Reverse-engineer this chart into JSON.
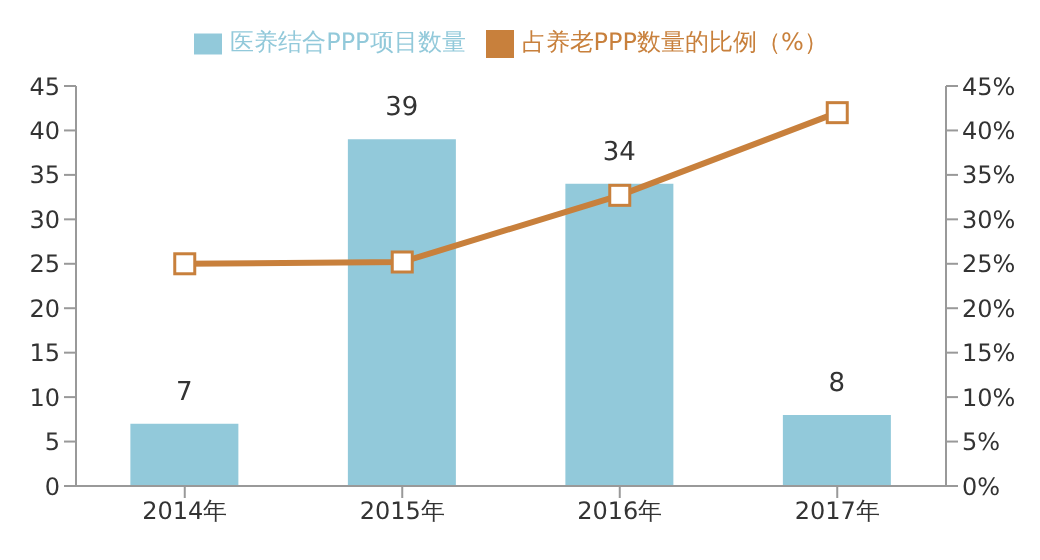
{
  "chart_data": {
    "type": "bar",
    "categories": [
      "2014年",
      "2015年",
      "2016年",
      "2017年"
    ],
    "series": [
      {
        "name": "医养结合PPP项目数量",
        "color": "#92c9da",
        "values": [
          7,
          39,
          34,
          8
        ],
        "value_labels": [
          "7",
          "39",
          "34",
          "8"
        ]
      },
      {
        "name": "占养老PPP数量的比例（%）",
        "type": "line",
        "axis": "y2",
        "color": "#c8803c",
        "values": [
          25,
          25.2,
          32.7,
          42
        ]
      }
    ],
    "ylim": [
      0,
      45
    ],
    "yticks": [
      0,
      5,
      10,
      15,
      20,
      25,
      30,
      35,
      40,
      45
    ],
    "y2lim": [
      0,
      45
    ],
    "y2ticks": [
      {
        "value": 0,
        "label": "0%"
      },
      {
        "value": 5,
        "label": "5%"
      },
      {
        "value": 10,
        "label": "10%"
      },
      {
        "value": 15,
        "label": "15%"
      },
      {
        "value": 20,
        "label": "20%"
      },
      {
        "value": 25,
        "label": "25%"
      },
      {
        "value": 30,
        "label": "30%"
      },
      {
        "value": 35,
        "label": "35%"
      },
      {
        "value": 40,
        "label": "40%"
      },
      {
        "value": 45,
        "label": "45%"
      }
    ],
    "grid": false,
    "legend": "top",
    "marker": "square",
    "line_style": "solid"
  }
}
